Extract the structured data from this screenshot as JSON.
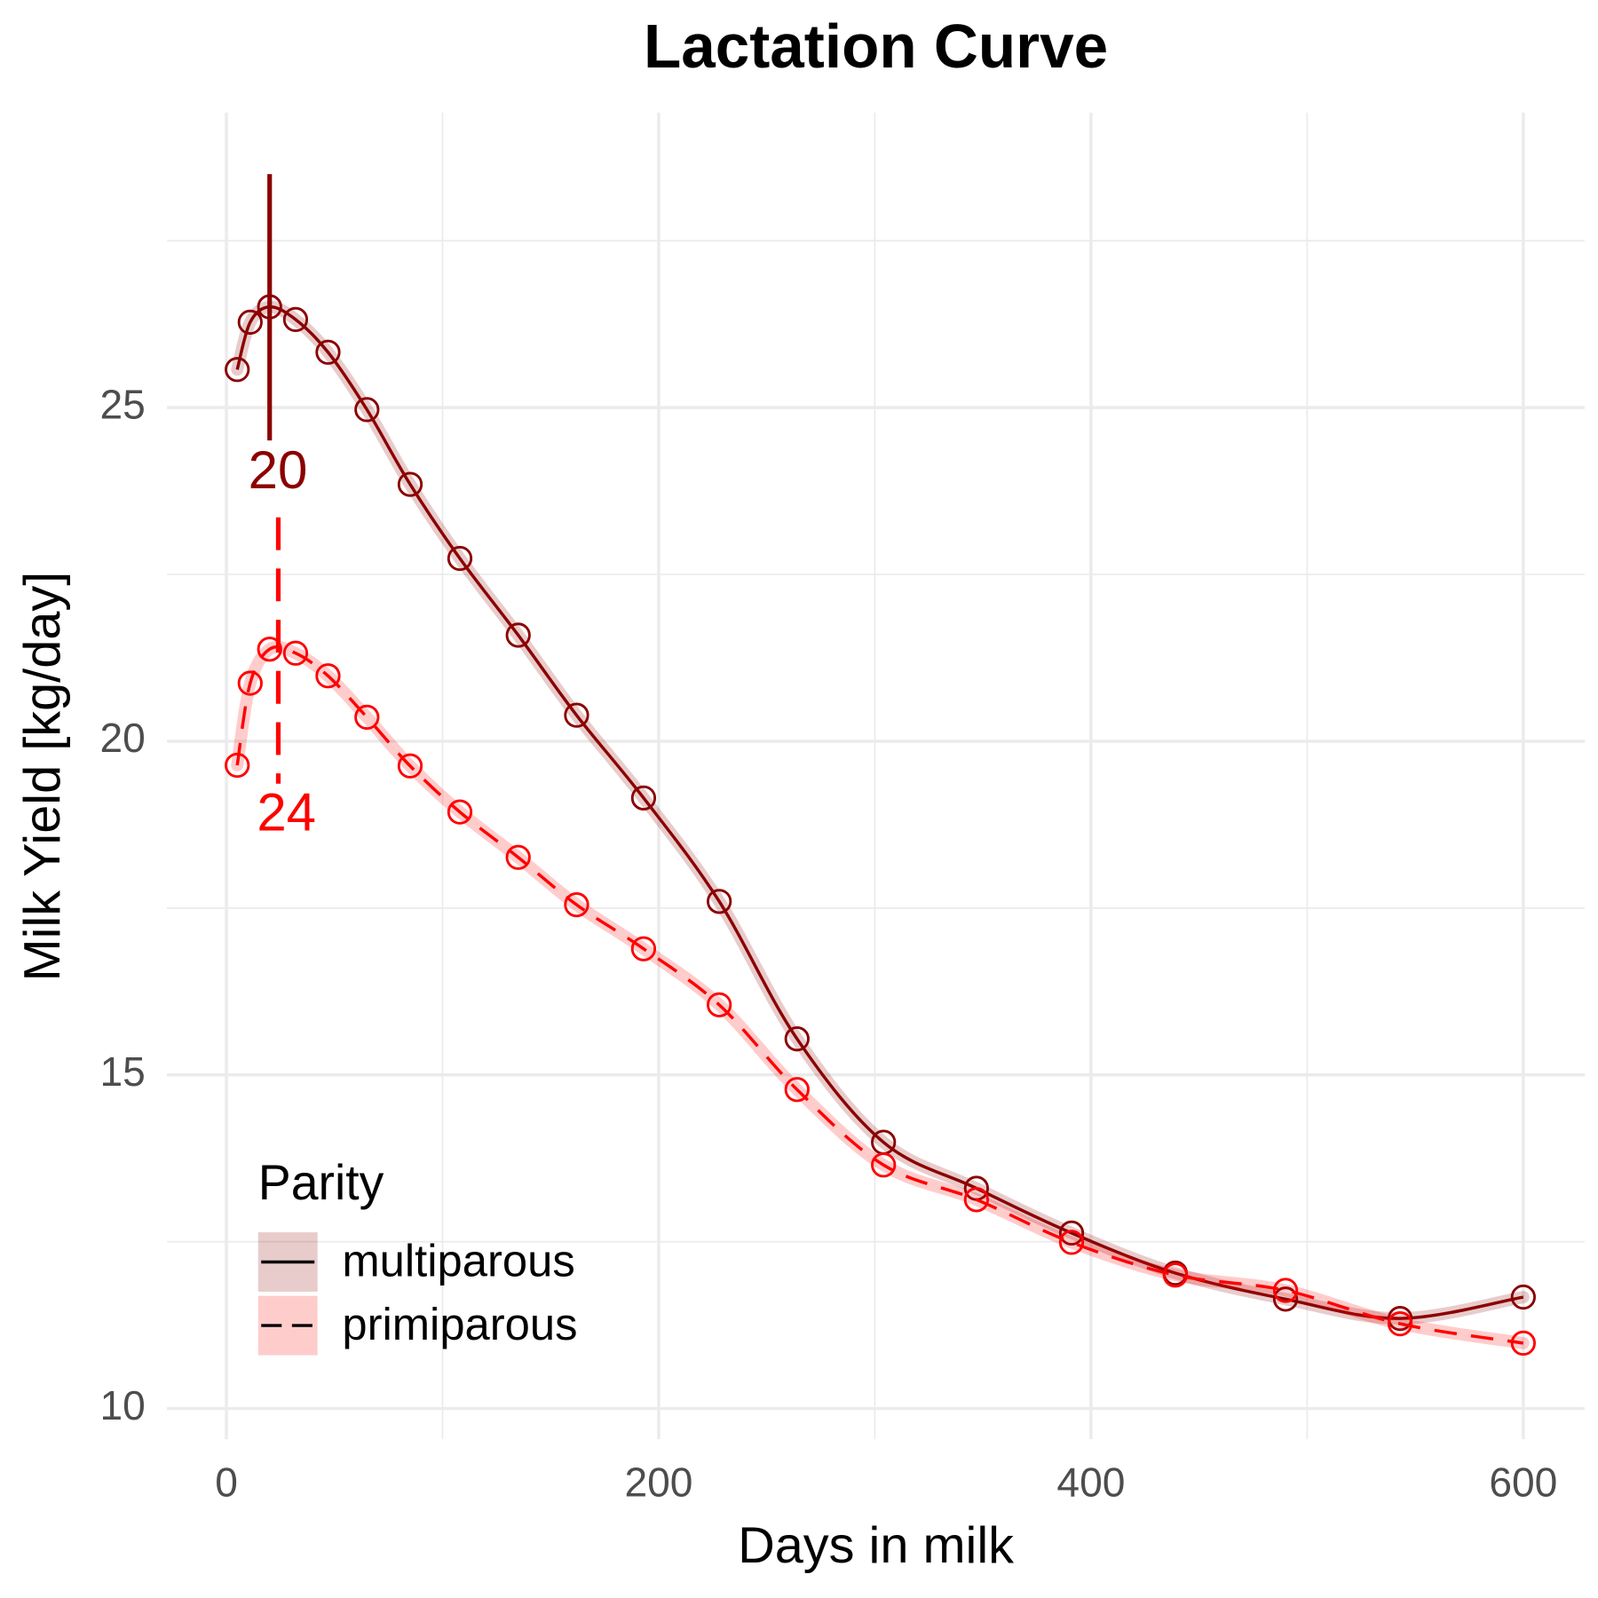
{
  "chart_data": {
    "type": "line",
    "title": "Lactation Curve",
    "xlabel": "Days in milk",
    "ylabel": "Milk Yield [kg/day]",
    "x": [
      5,
      11,
      20,
      32,
      47,
      65,
      85,
      108,
      135,
      162,
      193,
      228,
      264,
      304,
      347,
      391,
      439,
      490,
      543,
      600
    ],
    "series": [
      {
        "name": "multiparous",
        "color": "#8b0000",
        "dash": "solid",
        "peak": 20,
        "values": [
          25.57,
          26.28,
          26.51,
          26.32,
          25.83,
          24.97,
          23.85,
          22.74,
          21.59,
          20.39,
          19.15,
          17.6,
          15.54,
          13.99,
          13.3,
          12.63,
          12.03,
          11.64,
          11.35,
          11.67
        ]
      },
      {
        "name": "primiparous",
        "color": "#ff0000",
        "dash": "dashed",
        "peak": 24,
        "values": [
          19.64,
          20.87,
          21.38,
          21.32,
          20.98,
          20.36,
          19.63,
          18.94,
          18.26,
          17.55,
          16.89,
          16.05,
          14.78,
          13.65,
          13.13,
          12.49,
          12.0,
          11.77,
          11.27,
          10.98
        ]
      }
    ],
    "xlim": [
      -27.5,
      628.4
    ],
    "ylim": [
      9.54,
      29.42
    ],
    "xticks": [
      0,
      200,
      400,
      600
    ],
    "yticks": [
      10,
      15,
      20,
      25
    ],
    "xminor": [
      100,
      300,
      500
    ],
    "yminor": [
      12.5,
      17.5,
      22.5,
      27.5
    ],
    "grid": true,
    "legend_title": "Parity",
    "legend": "bottom-left"
  }
}
